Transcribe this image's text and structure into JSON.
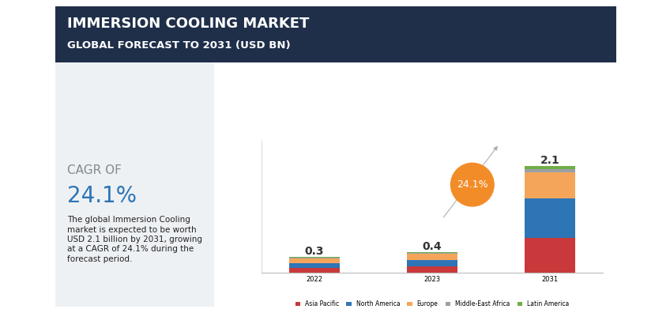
{
  "chart_data": {
    "type": "bar",
    "stacked": true,
    "title": "IMMERSION COOLING MARKET",
    "subtitle": "GLOBAL FORECAST TO 2031 (USD BN)",
    "annotations": {
      "cagr_heading": "CAGR OF",
      "cagr": "24.1%",
      "description": "The global Immersion Cooling market is expected to be worth USD 2.1 billion by 2031, growing at a CAGR of 24.1% during the forecast period."
    },
    "categories": [
      "2022",
      "2023",
      "2031"
    ],
    "series": [
      {
        "name": "Asia Pacific",
        "color": "#c9383a",
        "values": [
          0.08,
          0.11,
          0.68
        ]
      },
      {
        "name": "North America",
        "color": "#2e75b6",
        "values": [
          0.1,
          0.13,
          0.78
        ]
      },
      {
        "name": "Europe",
        "color": "#f5a55a",
        "values": [
          0.09,
          0.12,
          0.52
        ]
      },
      {
        "name": "Middle-East Africa",
        "color": "#9aa0a6",
        "values": [
          0.02,
          0.02,
          0.06
        ]
      },
      {
        "name": "Latin America",
        "color": "#70ad47",
        "values": [
          0.01,
          0.02,
          0.06
        ]
      }
    ],
    "totals": [
      0.3,
      0.4,
      2.1
    ],
    "ylim": [
      0,
      2.6
    ],
    "yticks": [],
    "tick_labels": "x",
    "grid": false,
    "legend": "lower center"
  }
}
